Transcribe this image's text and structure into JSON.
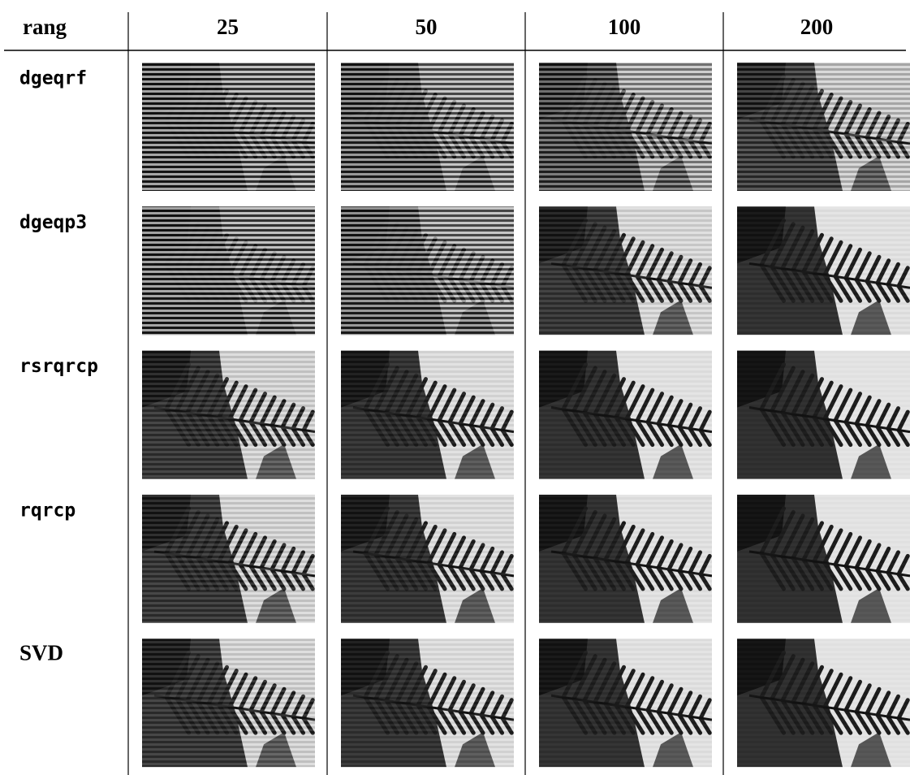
{
  "table": {
    "header": [
      "rang",
      "25",
      "50",
      "100",
      "200"
    ],
    "rows": [
      "dgeqrf",
      "dgeqp3",
      "rsrqrcp",
      "rqrcp",
      "SVD"
    ]
  }
}
